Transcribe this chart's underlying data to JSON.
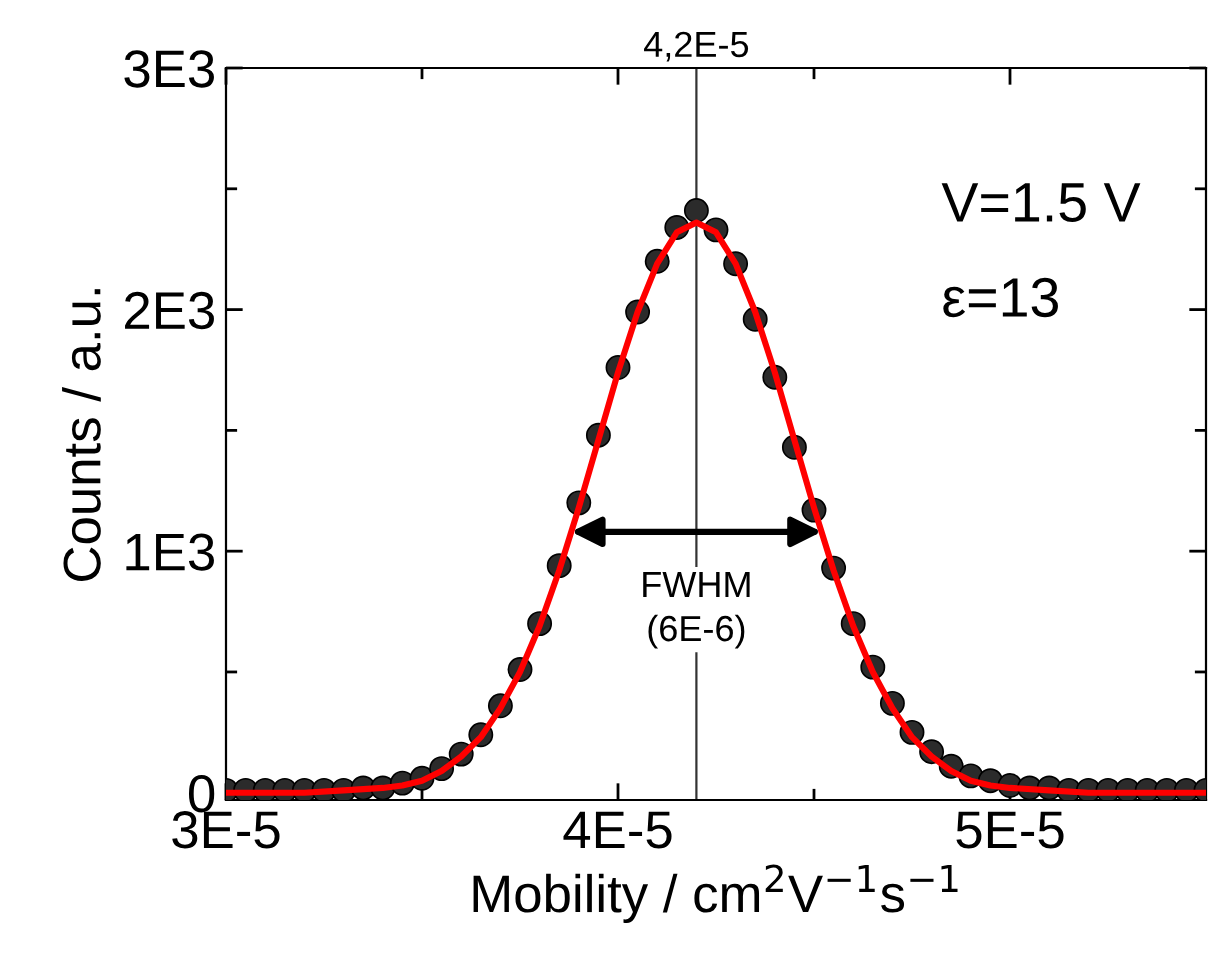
{
  "chart_data": {
    "type": "scatter",
    "xlabel": "Mobility / cm$^{2}$V$^{−1}$s$^{−1}$",
    "ylabel": "Counts / a.u.",
    "xlim": [
      3e-05,
      5.5e-05
    ],
    "ylim": [
      -30,
      3000
    ],
    "xticks": [
      {
        "value": 3e-05,
        "label": "3E-5"
      },
      {
        "value": 3.5e-05,
        "label": null
      },
      {
        "value": 4e-05,
        "label": "4E-5"
      },
      {
        "value": 4.5e-05,
        "label": null
      },
      {
        "value": 5e-05,
        "label": "5E-5"
      }
    ],
    "yticks": [
      0,
      {
        "value": 500,
        "label": null
      },
      {
        "value": 1000,
        "label": "1E3"
      },
      {
        "value": 1500,
        "label": null
      },
      {
        "value": 2000,
        "label": "2E3"
      },
      {
        "value": 2500,
        "label": null
      },
      {
        "value": 3000,
        "label": "3E3"
      }
    ],
    "marker": "circle",
    "grid": false,
    "legend": false,
    "series": [
      {
        "color": "#2b2b2b",
        "x": [
          3e-05,
          3.05e-05,
          3.1e-05,
          3.15e-05,
          3.2e-05,
          3.25e-05,
          3.3e-05,
          3.35e-05,
          3.4e-05,
          3.45e-05,
          3.5e-05,
          3.55e-05,
          3.6e-05,
          3.65e-05,
          3.7e-05,
          3.75e-05,
          3.8e-05,
          3.85e-05,
          3.9e-05,
          3.95e-05,
          4e-05,
          4.05e-05,
          4.1e-05,
          4.15e-05,
          4.2e-05,
          4.25e-05,
          4.3e-05,
          4.35e-05,
          4.4e-05,
          4.45e-05,
          4.5e-05,
          4.55e-05,
          4.6e-05,
          4.65e-05,
          4.7e-05,
          4.75e-05,
          4.8e-05,
          4.85e-05,
          4.9e-05,
          4.95e-05,
          5e-05,
          5.05e-05,
          5.1e-05,
          5.15e-05,
          5.2e-05,
          5.25e-05,
          5.3e-05,
          5.35e-05,
          5.4e-05,
          5.45e-05,
          5.5e-05
        ],
        "values": [
          10,
          10,
          10,
          10,
          10,
          10,
          10,
          20,
          20,
          40,
          60,
          100,
          160,
          240,
          360,
          510,
          700,
          940,
          1200,
          1480,
          1760,
          1990,
          2200,
          2340,
          2410,
          2330,
          2190,
          1960,
          1720,
          1430,
          1170,
          930,
          700,
          520,
          370,
          250,
          170,
          110,
          70,
          50,
          30,
          20,
          20,
          10,
          10,
          10,
          10,
          10,
          10,
          10,
          10
        ]
      },
      {
        "type": "line",
        "color": "#ff0000",
        "marker": "none",
        "x": [
          3e-05,
          3.1e-05,
          3.2e-05,
          3.3e-05,
          3.4e-05,
          3.45e-05,
          3.5e-05,
          3.55e-05,
          3.6e-05,
          3.65e-05,
          3.7e-05,
          3.75e-05,
          3.8e-05,
          3.85e-05,
          3.9e-05,
          3.95e-05,
          4e-05,
          4.05e-05,
          4.1e-05,
          4.15e-05,
          4.2e-05,
          4.25e-05,
          4.3e-05,
          4.35e-05,
          4.4e-05,
          4.45e-05,
          4.5e-05,
          4.55e-05,
          4.6e-05,
          4.65e-05,
          4.7e-05,
          4.75e-05,
          4.8e-05,
          4.85e-05,
          4.9e-05,
          4.95e-05,
          5e-05,
          5.1e-05,
          5.2e-05,
          5.3e-05,
          5.5e-05
        ],
        "values": [
          0,
          0,
          0,
          10,
          20,
          30,
          50,
          90,
          150,
          230,
          350,
          500,
          690,
          920,
          1180,
          1460,
          1740,
          1990,
          2190,
          2320,
          2360,
          2320,
          2190,
          1990,
          1740,
          1460,
          1180,
          920,
          690,
          500,
          350,
          230,
          150,
          90,
          50,
          30,
          20,
          10,
          0,
          0,
          0
        ]
      }
    ],
    "ref_lines": [
      {
        "axis": "x",
        "value": 4.2e-05,
        "label": "4,2E-5",
        "color": "#333333"
      }
    ],
    "annotations": [
      "V=1.5 V",
      "ε=13",
      {
        "text": "FWHM\n(6E-6)",
        "x": 4.2e-05,
        "y": 1080
      }
    ]
  }
}
